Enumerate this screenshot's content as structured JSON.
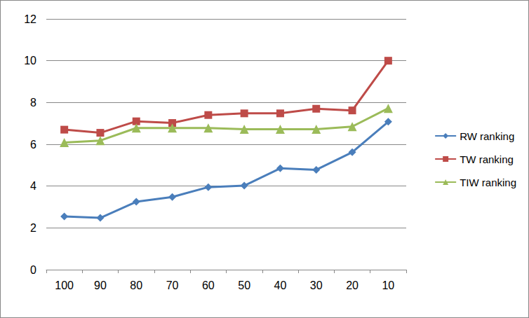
{
  "chart_data": {
    "type": "line",
    "categories": [
      "100",
      "90",
      "80",
      "70",
      "60",
      "50",
      "40",
      "30",
      "20",
      "10"
    ],
    "series": [
      {
        "name": "RW ranking",
        "color": "#4a7ebb",
        "marker": "diamond",
        "values": [
          2.55,
          2.48,
          3.25,
          3.48,
          3.95,
          4.02,
          4.85,
          4.78,
          5.62,
          7.08
        ]
      },
      {
        "name": "TW ranking",
        "color": "#be4b48",
        "marker": "square",
        "values": [
          6.7,
          6.55,
          7.1,
          7.02,
          7.4,
          7.48,
          7.48,
          7.7,
          7.62,
          10.0
        ]
      },
      {
        "name": "TIW ranking",
        "color": "#9bbb59",
        "marker": "triangle",
        "values": [
          6.08,
          6.18,
          6.78,
          6.78,
          6.78,
          6.72,
          6.72,
          6.72,
          6.85,
          7.72
        ]
      }
    ],
    "ylim": [
      0,
      12
    ],
    "yticks": [
      0,
      2,
      4,
      6,
      8,
      10,
      12
    ],
    "grid": true,
    "legend": "right"
  }
}
